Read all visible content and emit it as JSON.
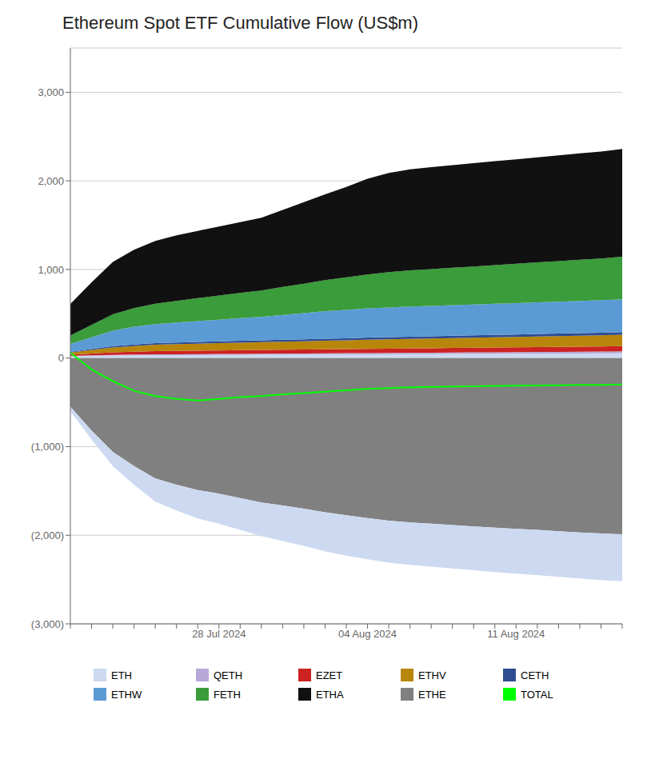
{
  "chart_data": {
    "type": "area",
    "title": "Ethereum Spot ETF Cumulative Flow (US$m)",
    "stacked": true,
    "grid": true,
    "legend": "bottom",
    "categories": [
      null,
      null,
      null,
      null,
      null,
      null,
      null,
      "28 Jul 2024",
      null,
      null,
      null,
      null,
      null,
      null,
      "04 Aug 2024",
      null,
      null,
      null,
      null,
      null,
      null,
      "11 Aug 2024",
      null,
      null,
      null,
      null,
      null
    ],
    "ylim": [
      -3000,
      3500
    ],
    "yticks": [
      {
        "value": -3000,
        "label": "(3,000)"
      },
      {
        "value": -2000,
        "label": "(2,000)"
      },
      {
        "value": -1000,
        "label": "(1,000)"
      },
      0,
      {
        "value": 1000,
        "label": "1,000"
      },
      {
        "value": 2000,
        "label": "2,000"
      },
      {
        "value": 3000,
        "label": "3,000"
      }
    ],
    "series": [
      {
        "name": "ETH",
        "type": "area",
        "color": "#ccd9f0",
        "values": [
          20,
          25,
          28,
          30,
          32,
          33,
          34,
          35,
          36,
          37,
          38,
          39,
          40,
          41,
          42,
          43,
          44,
          45,
          46,
          47,
          48,
          49,
          50,
          51,
          52,
          53,
          55
        ]
      },
      {
        "name": "QETH",
        "type": "area",
        "color": "#b8a8d8",
        "values": [
          5,
          7,
          8,
          9,
          10,
          10,
          11,
          11,
          12,
          12,
          13,
          13,
          14,
          14,
          15,
          15,
          16,
          16,
          17,
          17,
          18,
          18,
          19,
          19,
          20,
          20,
          21
        ]
      },
      {
        "name": "EZET",
        "type": "area",
        "color": "#cc2222",
        "values": [
          12,
          20,
          28,
          32,
          36,
          38,
          39,
          40,
          41,
          42,
          43,
          44,
          45,
          46,
          47,
          48,
          49,
          50,
          51,
          52,
          53,
          54,
          55,
          56,
          57,
          58,
          60
        ]
      },
      {
        "name": "ETHV",
        "type": "area",
        "color": "#b8860b",
        "values": [
          25,
          40,
          55,
          65,
          72,
          76,
          79,
          82,
          85,
          88,
          91,
          94,
          97,
          100,
          103,
          106,
          108,
          110,
          112,
          114,
          116,
          118,
          120,
          122,
          124,
          126,
          128
        ]
      },
      {
        "name": "CETH",
        "type": "area",
        "color": "#2e4d91",
        "values": [
          8,
          12,
          15,
          17,
          18,
          19,
          20,
          20,
          21,
          21,
          22,
          22,
          23,
          23,
          24,
          24,
          25,
          25,
          26,
          26,
          27,
          27,
          28,
          28,
          29,
          29,
          30
        ]
      },
      {
        "name": "ETHW",
        "type": "area",
        "color": "#5b9bd5",
        "values": [
          90,
          130,
          175,
          200,
          215,
          225,
          235,
          245,
          255,
          265,
          280,
          295,
          310,
          320,
          330,
          335,
          340,
          343,
          346,
          349,
          352,
          355,
          358,
          361,
          364,
          367,
          370
        ]
      },
      {
        "name": "FETH",
        "type": "area",
        "color": "#3a9c3a",
        "values": [
          95,
          140,
          185,
          210,
          230,
          245,
          258,
          272,
          285,
          298,
          315,
          332,
          350,
          368,
          383,
          398,
          408,
          415,
          422,
          429,
          436,
          443,
          450,
          457,
          464,
          471,
          480
        ]
      },
      {
        "name": "ETHA",
        "type": "area",
        "color": "#111111",
        "values": [
          355,
          480,
          590,
          660,
          710,
          740,
          760,
          780,
          800,
          820,
          870,
          920,
          970,
          1020,
          1080,
          1120,
          1140,
          1150,
          1158,
          1165,
          1172,
          1179,
          1186,
          1193,
          1200,
          1208,
          1216
        ]
      },
      {
        "name": "ETHE",
        "type": "area",
        "color": "#808080",
        "values": [
          -550,
          -820,
          -1060,
          -1220,
          -1360,
          -1430,
          -1490,
          -1530,
          -1580,
          -1630,
          -1665,
          -1700,
          -1740,
          -1775,
          -1805,
          -1835,
          -1855,
          -1870,
          -1885,
          -1900,
          -1915,
          -1928,
          -1940,
          -1955,
          -1968,
          -1980,
          -1990
        ]
      },
      {
        "name": "ETH",
        "type": "area",
        "color": "#ccd9f0",
        "values": [
          -50,
          -100,
          -160,
          -210,
          -260,
          -290,
          -320,
          -340,
          -360,
          -380,
          -400,
          -420,
          -440,
          -455,
          -465,
          -475,
          -480,
          -485,
          -490,
          -495,
          -500,
          -505,
          -510,
          -515,
          -520,
          -525,
          -530
        ]
      },
      {
        "name": "TOTAL",
        "type": "line",
        "color": "#00ff00",
        "values": [
          60,
          -130,
          -260,
          -370,
          -430,
          -460,
          -480,
          -460,
          -440,
          -430,
          -410,
          -395,
          -380,
          -363,
          -348,
          -338,
          -330,
          -326,
          -322,
          -318,
          -315,
          -312,
          -309,
          -307,
          -304,
          -302,
          -299
        ]
      }
    ]
  }
}
